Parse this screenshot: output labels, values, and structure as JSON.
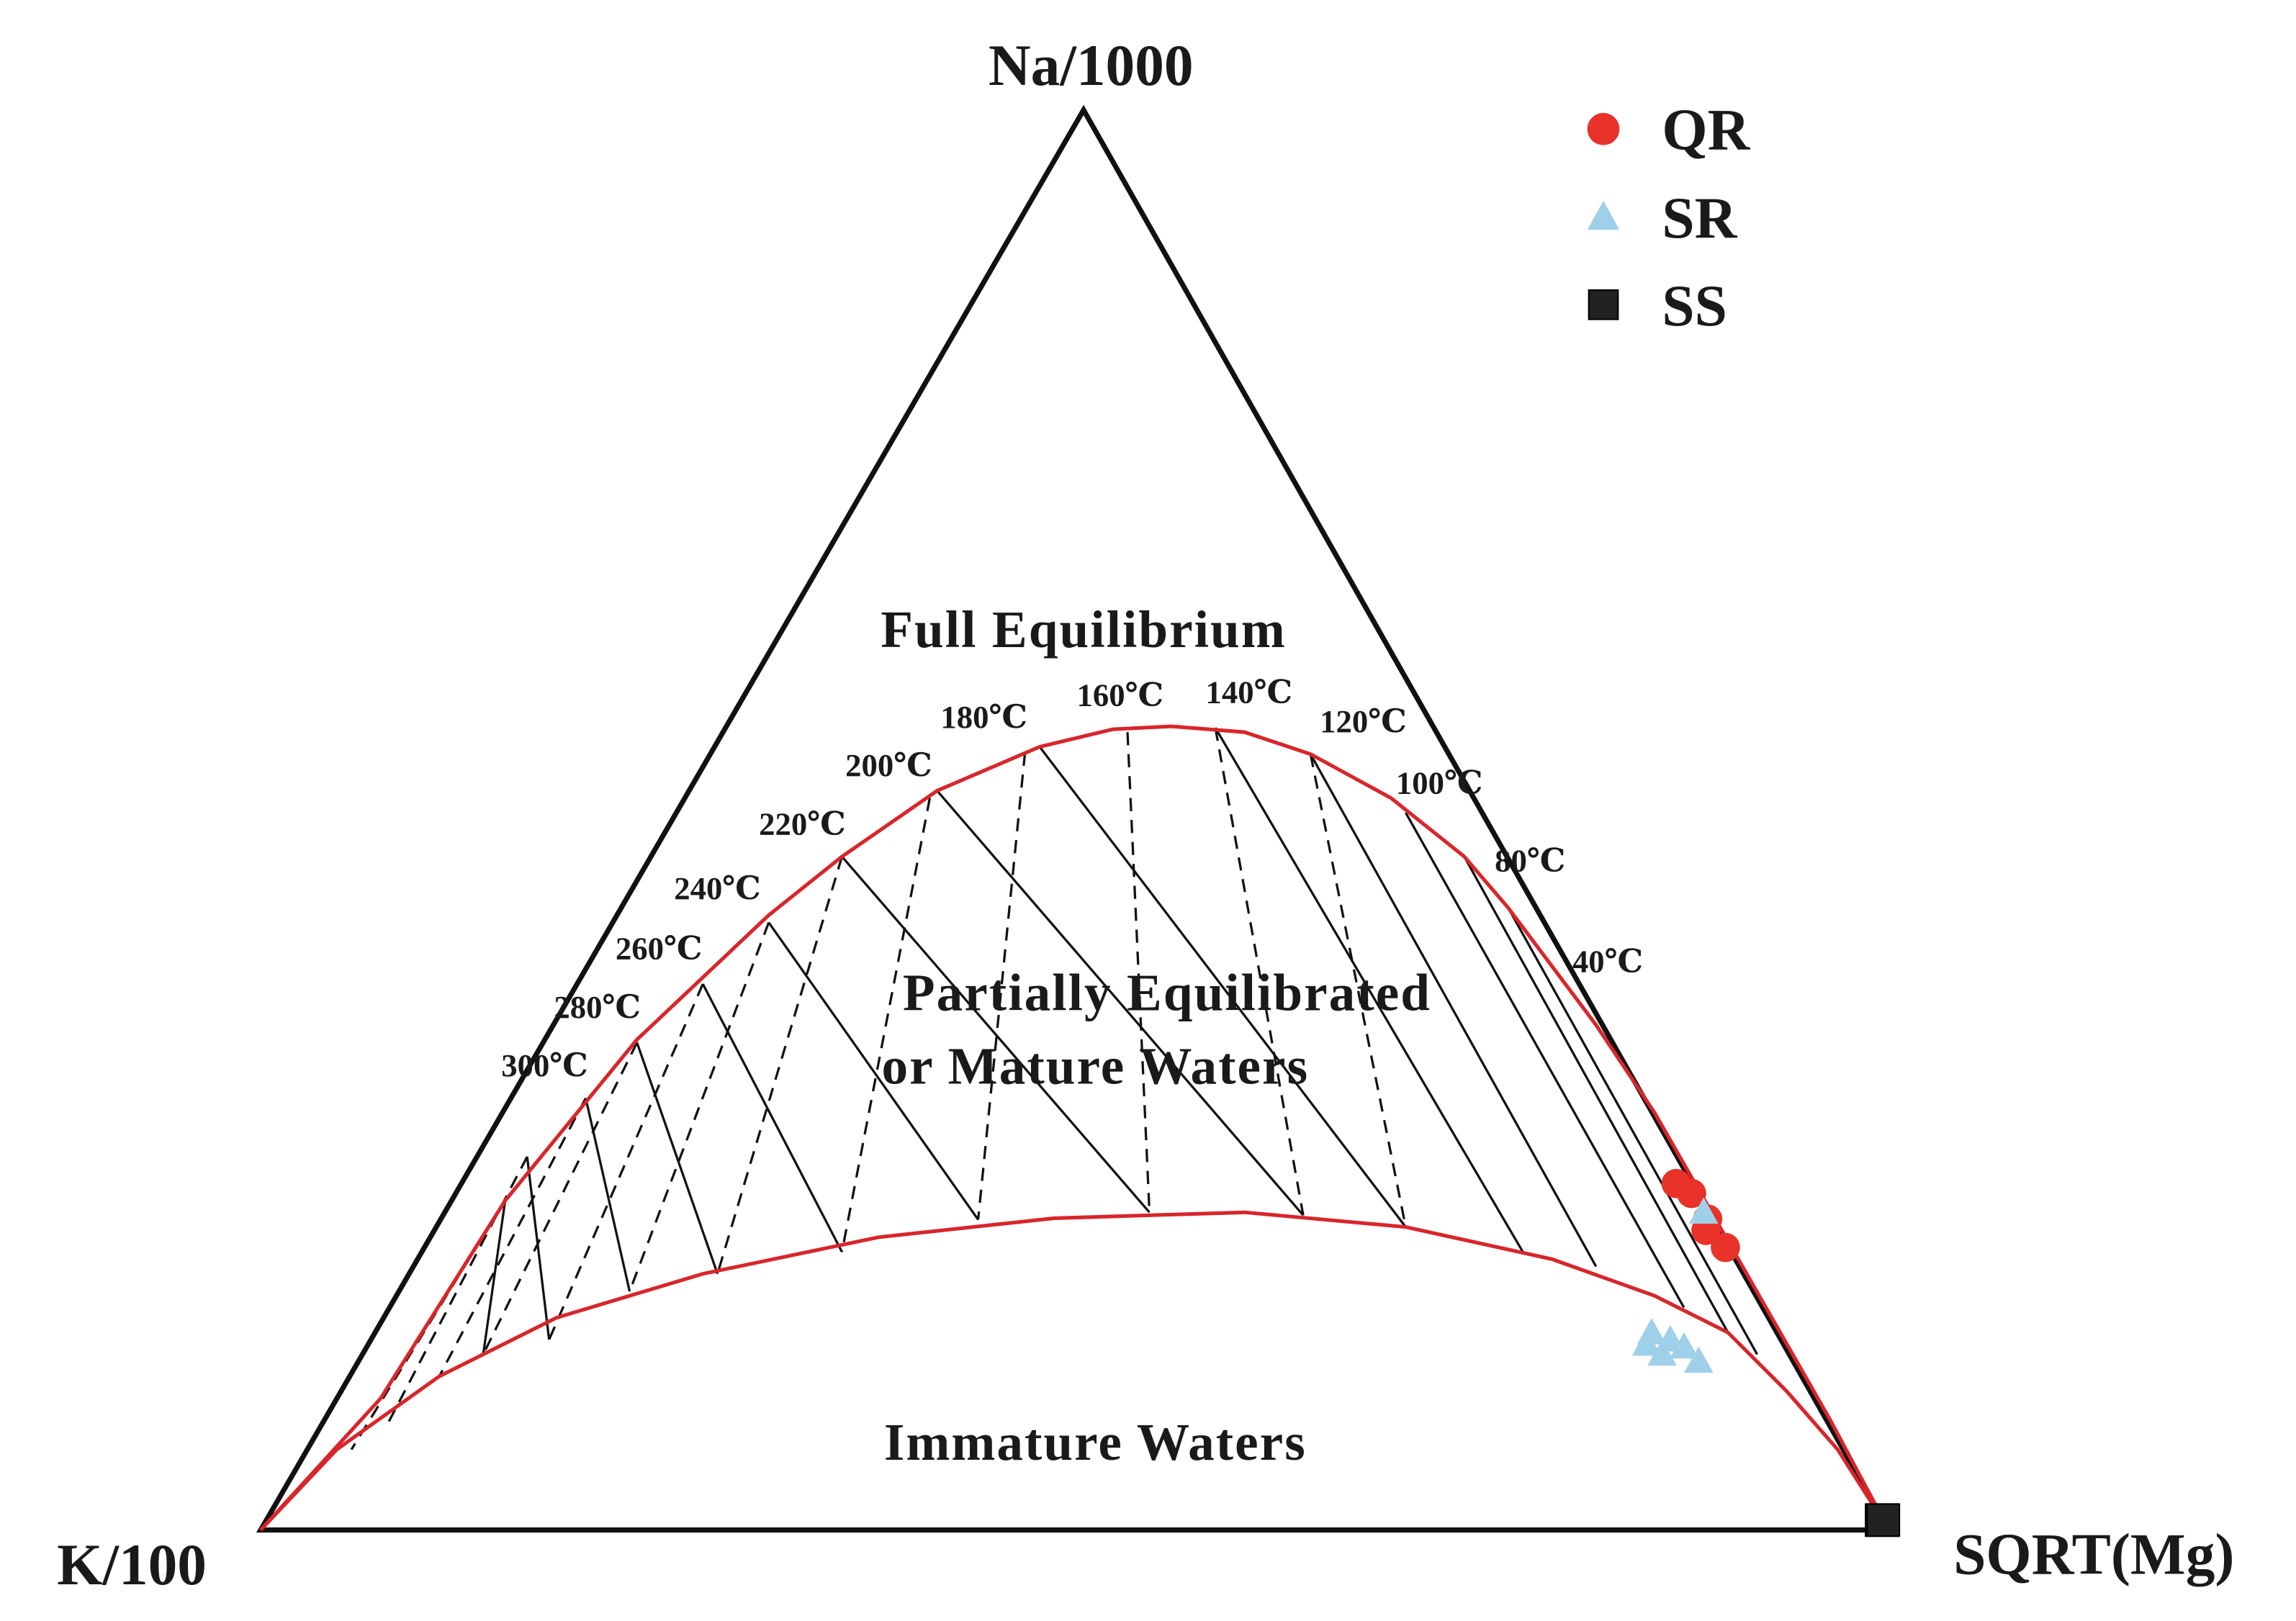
{
  "chart_data": {
    "type": "ternary",
    "corner_labels": {
      "top": "Na/1000",
      "left": "K/100",
      "right": "SQRT(Mg)"
    },
    "region_labels": {
      "full": "Full Equilibrium",
      "partial": [
        "Partially Equilibrated",
        "or Mature Waters"
      ],
      "immature": "Immature Waters"
    },
    "isotherm_labels": [
      "300℃",
      "280℃",
      "260℃",
      "240℃",
      "220℃",
      "200℃",
      "180℃",
      "160℃",
      "140℃",
      "120℃",
      "100℃",
      "80℃",
      "40℃"
    ],
    "series": [
      {
        "name": "QR",
        "color": "#e8322a",
        "marker": "circle",
        "na": [
          24.4,
          23.7,
          21.9,
          21.1,
          19.9
        ],
        "k": [
          1.0,
          0.4,
          0.3,
          0.8,
          0.2
        ],
        "mg": [
          74.6,
          75.9,
          77.8,
          78.1,
          79.9
        ]
      },
      {
        "name": "SR",
        "color": "#9fd0ea",
        "marker": "triangle",
        "na": [
          22.4,
          13.9,
          13.4,
          12.4,
          12.9,
          11.9,
          13.1
        ],
        "k": [
          0.3,
          7.7,
          6.8,
          7.8,
          6.2,
          5.8,
          8.4
        ],
        "mg": [
          77.3,
          78.4,
          79.8,
          79.8,
          80.9,
          82.3,
          78.5
        ]
      },
      {
        "name": "SS",
        "color": "#222222",
        "marker": "square",
        "na": [
          0.7,
          0.7
        ],
        "k": [
          0.1,
          0.0
        ],
        "mg": [
          99.2,
          99.3
        ]
      }
    ],
    "legend": "upper right"
  }
}
